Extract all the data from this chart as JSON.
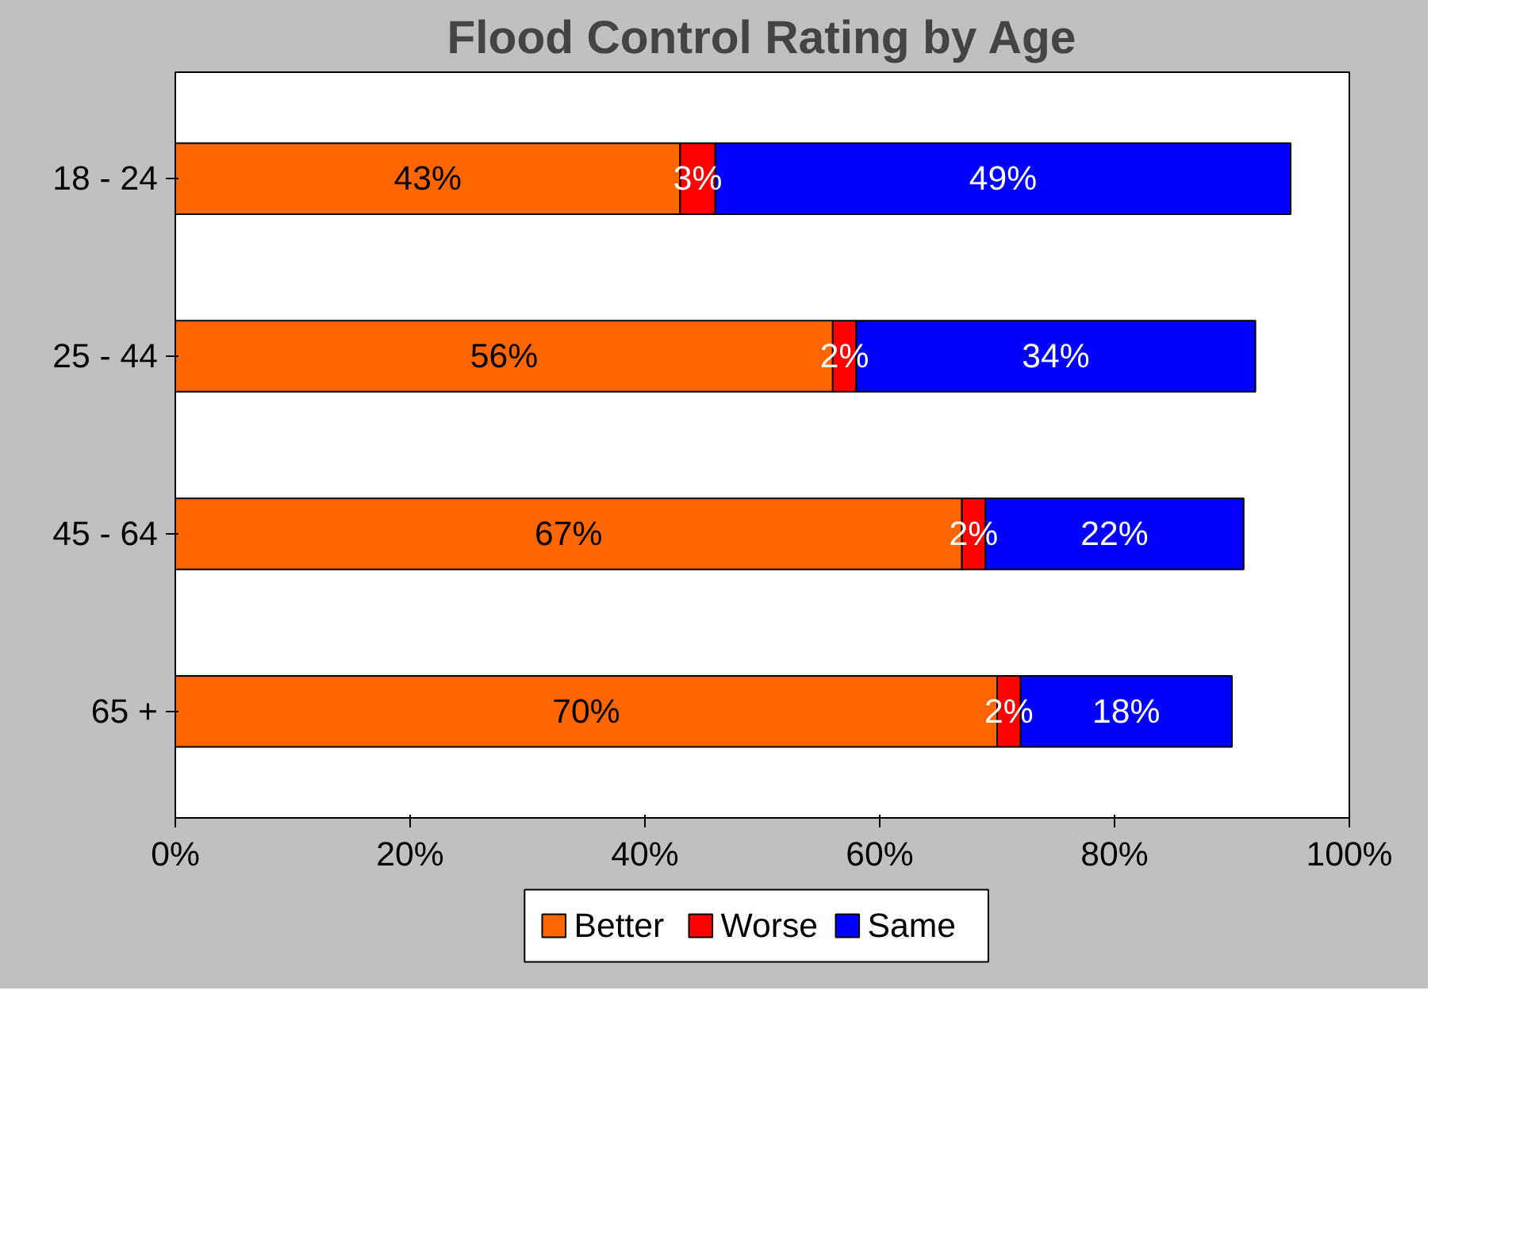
{
  "chart_data": {
    "type": "bar",
    "title": "Flood Control Rating by Age",
    "orientation": "horizontal",
    "stacked": true,
    "categories": [
      "18 - 24",
      "25 - 44",
      "45 - 64",
      "65 +"
    ],
    "series": [
      {
        "name": "Better",
        "color": "#ff6600",
        "values": [
          43,
          56,
          67,
          70
        ],
        "value_labels": [
          "43%",
          "56%",
          "67%",
          "70%"
        ]
      },
      {
        "name": "Worse",
        "color": "#ff0000",
        "values": [
          3,
          2,
          2,
          2
        ],
        "value_labels": [
          "3%",
          "2%",
          "2%",
          "2%"
        ]
      },
      {
        "name": "Same",
        "color": "#0000ff",
        "values": [
          49,
          34,
          22,
          18
        ],
        "value_labels": [
          "49%",
          "34%",
          "22%",
          "18%"
        ]
      }
    ],
    "xlim": [
      0,
      100
    ],
    "xticks": [
      {
        "value": 0,
        "label": "0%"
      },
      {
        "value": 20,
        "label": "20%"
      },
      {
        "value": 40,
        "label": "40%"
      },
      {
        "value": 60,
        "label": "60%"
      },
      {
        "value": 80,
        "label": "80%"
      },
      {
        "value": 100,
        "label": "100%"
      }
    ],
    "legend": "bottom",
    "grid": false
  }
}
